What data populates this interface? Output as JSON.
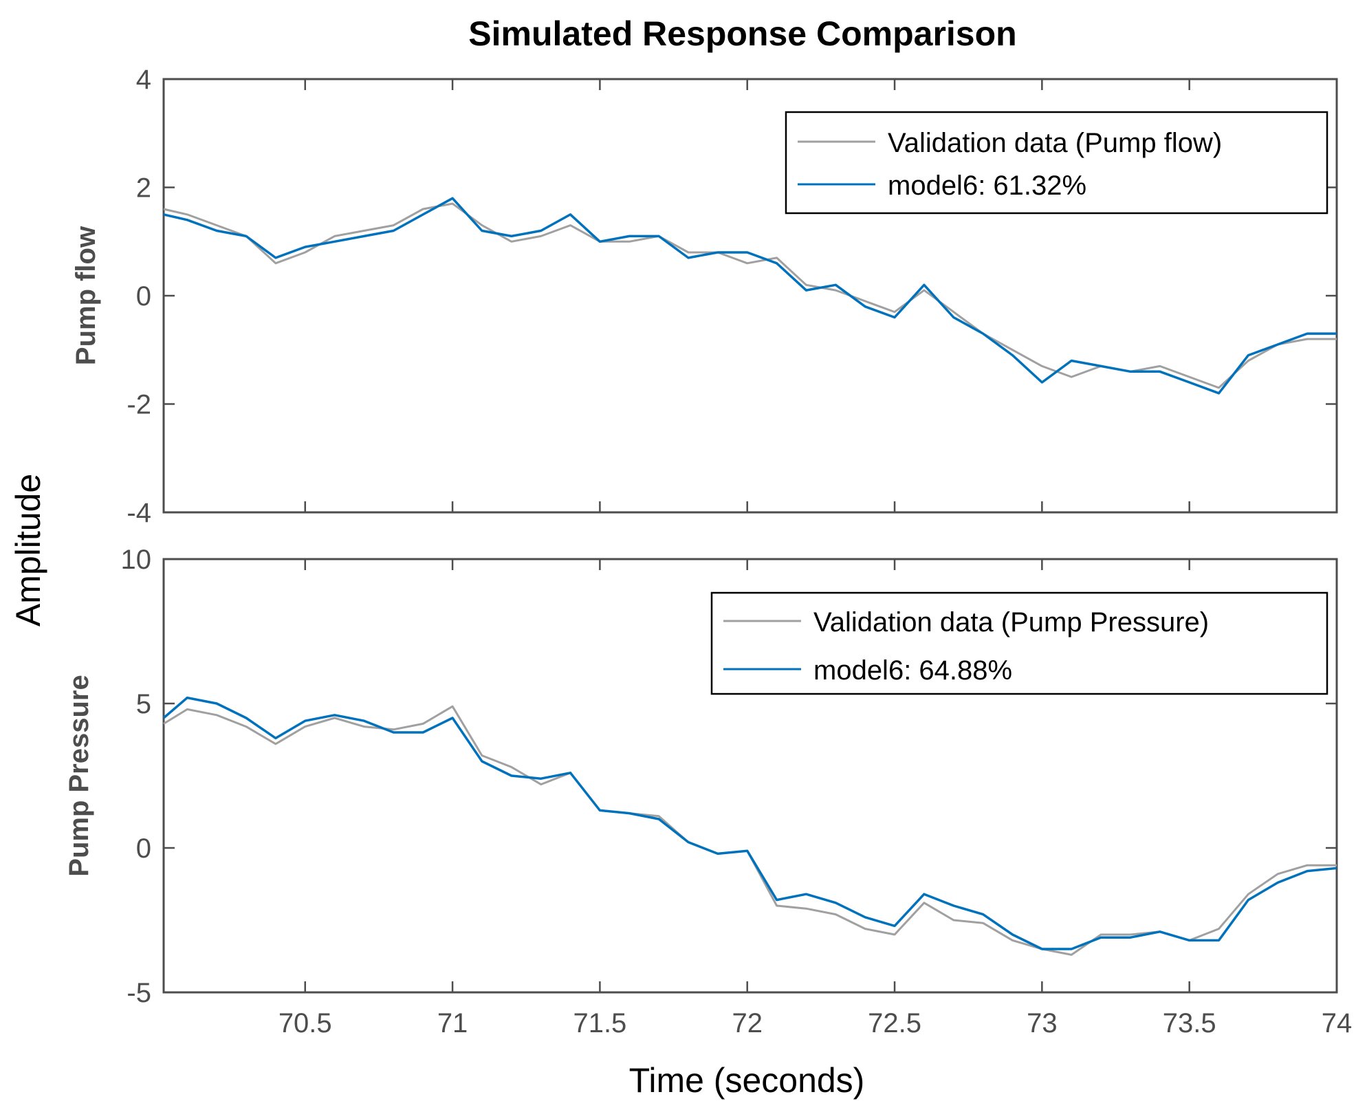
{
  "chart_data": {
    "type": "line",
    "title": "Simulated Response Comparison",
    "xlabel": "Time (seconds)",
    "ylabel": "Amplitude",
    "xlim": [
      70.02,
      74
    ],
    "xticks": [
      "70.5",
      "71",
      "71.5",
      "72",
      "72.5",
      "73",
      "73.5",
      "74"
    ],
    "colors": {
      "validation": "#a0a0a0",
      "model": "#0072bd",
      "axis": "#4d4d4d"
    },
    "grid": false,
    "subplots": [
      {
        "ylabel": "Pump flow",
        "ylim": [
          -4,
          4
        ],
        "yticks": [
          "4",
          "2",
          "0",
          "-2",
          "-4"
        ],
        "legend_position": "top-right",
        "series": [
          {
            "name": "Validation data (Pump flow)",
            "role": "validation",
            "x": [
              70.02,
              70.1,
              70.2,
              70.3,
              70.4,
              70.5,
              70.6,
              70.7,
              70.8,
              70.9,
              71.0,
              71.1,
              71.2,
              71.3,
              71.4,
              71.5,
              71.6,
              71.7,
              71.8,
              71.9,
              72.0,
              72.1,
              72.2,
              72.3,
              72.4,
              72.5,
              72.6,
              72.7,
              72.8,
              72.9,
              73.0,
              73.1,
              73.2,
              73.3,
              73.4,
              73.5,
              73.6,
              73.7,
              73.8,
              73.9,
              74.0
            ],
            "y": [
              1.6,
              1.5,
              1.3,
              1.1,
              0.6,
              0.8,
              1.1,
              1.2,
              1.3,
              1.6,
              1.7,
              1.3,
              1.0,
              1.1,
              1.3,
              1.0,
              1.0,
              1.1,
              0.8,
              0.8,
              0.6,
              0.7,
              0.2,
              0.1,
              -0.1,
              -0.3,
              0.1,
              -0.3,
              -0.7,
              -1.0,
              -1.3,
              -1.5,
              -1.3,
              -1.4,
              -1.3,
              -1.5,
              -1.7,
              -1.2,
              -0.9,
              -0.8,
              -0.8
            ]
          },
          {
            "name": "model6: 61.32%",
            "role": "model",
            "x": [
              70.02,
              70.1,
              70.2,
              70.3,
              70.4,
              70.5,
              70.6,
              70.7,
              70.8,
              70.9,
              71.0,
              71.1,
              71.2,
              71.3,
              71.4,
              71.5,
              71.6,
              71.7,
              71.8,
              71.9,
              72.0,
              72.1,
              72.2,
              72.3,
              72.4,
              72.5,
              72.6,
              72.7,
              72.8,
              72.9,
              73.0,
              73.1,
              73.2,
              73.3,
              73.4,
              73.5,
              73.6,
              73.7,
              73.8,
              73.9,
              74.0
            ],
            "y": [
              1.5,
              1.4,
              1.2,
              1.1,
              0.7,
              0.9,
              1.0,
              1.1,
              1.2,
              1.5,
              1.8,
              1.2,
              1.1,
              1.2,
              1.5,
              1.0,
              1.1,
              1.1,
              0.7,
              0.8,
              0.8,
              0.6,
              0.1,
              0.2,
              -0.2,
              -0.4,
              0.2,
              -0.4,
              -0.7,
              -1.1,
              -1.6,
              -1.2,
              -1.3,
              -1.4,
              -1.4,
              -1.6,
              -1.8,
              -1.1,
              -0.9,
              -0.7,
              -0.7
            ]
          }
        ]
      },
      {
        "ylabel": "Pump Pressure",
        "ylim": [
          -5,
          10
        ],
        "yticks": [
          "10",
          "5",
          "0",
          "-5"
        ],
        "legend_position": "top-right",
        "series": [
          {
            "name": "Validation data (Pump Pressure)",
            "role": "validation",
            "x": [
              70.02,
              70.1,
              70.2,
              70.3,
              70.4,
              70.5,
              70.6,
              70.7,
              70.8,
              70.9,
              71.0,
              71.1,
              71.2,
              71.3,
              71.4,
              71.5,
              71.6,
              71.7,
              71.8,
              71.9,
              72.0,
              72.1,
              72.2,
              72.3,
              72.4,
              72.5,
              72.6,
              72.7,
              72.8,
              72.9,
              73.0,
              73.1,
              73.2,
              73.3,
              73.4,
              73.5,
              73.6,
              73.7,
              73.8,
              73.9,
              74.0
            ],
            "y": [
              4.3,
              4.8,
              4.6,
              4.2,
              3.6,
              4.2,
              4.5,
              4.2,
              4.1,
              4.3,
              4.9,
              3.2,
              2.8,
              2.2,
              2.6,
              1.3,
              1.2,
              1.1,
              0.2,
              -0.2,
              -0.1,
              -2.0,
              -2.1,
              -2.3,
              -2.8,
              -3.0,
              -1.9,
              -2.5,
              -2.6,
              -3.2,
              -3.5,
              -3.7,
              -3.0,
              -3.0,
              -2.9,
              -3.2,
              -2.8,
              -1.6,
              -0.9,
              -0.6,
              -0.6
            ]
          },
          {
            "name": "model6: 64.88%",
            "role": "model",
            "x": [
              70.02,
              70.1,
              70.2,
              70.3,
              70.4,
              70.5,
              70.6,
              70.7,
              70.8,
              70.9,
              71.0,
              71.1,
              71.2,
              71.3,
              71.4,
              71.5,
              71.6,
              71.7,
              71.8,
              71.9,
              72.0,
              72.1,
              72.2,
              72.3,
              72.4,
              72.5,
              72.6,
              72.7,
              72.8,
              72.9,
              73.0,
              73.1,
              73.2,
              73.3,
              73.4,
              73.5,
              73.6,
              73.7,
              73.8,
              73.9,
              74.0
            ],
            "y": [
              4.5,
              5.2,
              5.0,
              4.5,
              3.8,
              4.4,
              4.6,
              4.4,
              4.0,
              4.0,
              4.5,
              3.0,
              2.5,
              2.4,
              2.6,
              1.3,
              1.2,
              1.0,
              0.2,
              -0.2,
              -0.1,
              -1.8,
              -1.6,
              -1.9,
              -2.4,
              -2.7,
              -1.6,
              -2.0,
              -2.3,
              -3.0,
              -3.5,
              -3.5,
              -3.1,
              -3.1,
              -2.9,
              -3.2,
              -3.2,
              -1.8,
              -1.2,
              -0.8,
              -0.7
            ]
          }
        ]
      }
    ]
  }
}
